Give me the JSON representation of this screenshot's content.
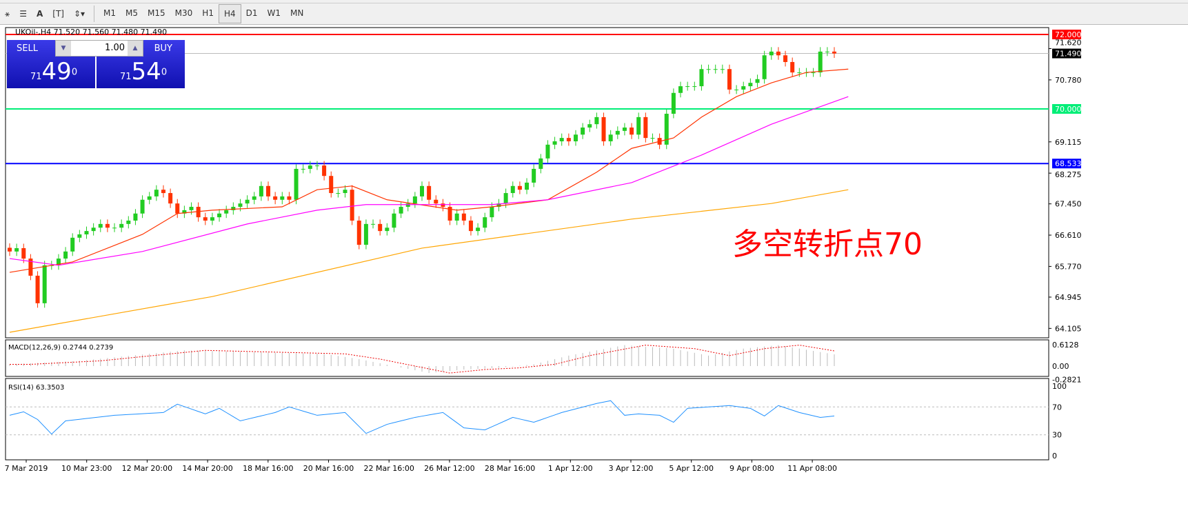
{
  "toolbar": {
    "tools": [
      "line-studies-icon",
      "fibonacci-icon",
      "text-icon",
      "text-label-icon",
      "arrows-icon"
    ],
    "timeframes": [
      "M1",
      "M5",
      "M15",
      "M30",
      "H1",
      "H4",
      "D1",
      "W1",
      "MN"
    ],
    "active": "H4"
  },
  "chart": {
    "header": "UKOil-,H4  71.520 71.560 71.480 71.490",
    "annotation": "多空转折点70",
    "colors": {
      "bull": "#22cc22",
      "bear": "#ff3300",
      "ma_fast": "#ff3300",
      "ma_mid": "#ff00ff",
      "ma_slow": "#ffa500"
    }
  },
  "trade_panel": {
    "sell_label": "SELL",
    "buy_label": "BUY",
    "volume": "1.00",
    "sell_big": "49",
    "sell_small": "71",
    "sell_sup": "0",
    "buy_big": "54",
    "buy_small": "71",
    "buy_sup": "0"
  },
  "levels": [
    {
      "price": 72.0,
      "label": "72.000",
      "color": "#ff0000"
    },
    {
      "price": 70.0,
      "label": "70.000",
      "color": "#00ee77"
    },
    {
      "price": 68.533,
      "label": "68.533",
      "color": "#0000ff"
    }
  ],
  "current_price": {
    "price": 71.49,
    "label": "71.490"
  },
  "chart_data": {
    "type": "candlestick",
    "ylim": [
      63.95,
      72.3
    ],
    "y_ticks": [
      "71.620",
      "70.780",
      "69.115",
      "68.275",
      "67.450",
      "66.610",
      "65.770",
      "64.945",
      "64.105"
    ],
    "x_ticks": [
      "7 Mar 2019",
      "10 Mar 23:00",
      "12 Mar 20:00",
      "14 Mar 20:00",
      "18 Mar 16:00",
      "20 Mar 16:00",
      "22 Mar 16:00",
      "26 Mar 12:00",
      "28 Mar 16:00",
      "1 Apr 12:00",
      "3 Apr 12:00",
      "5 Apr 12:00",
      "9 Apr 08:00",
      "11 Apr 08:00"
    ],
    "close": [
      66.17,
      66.26,
      65.98,
      65.52,
      64.78,
      65.8,
      65.8,
      65.98,
      66.17,
      66.54,
      66.63,
      66.72,
      66.81,
      66.91,
      66.81,
      66.81,
      66.91,
      67.0,
      67.19,
      67.56,
      67.65,
      67.83,
      67.74,
      67.46,
      67.19,
      67.28,
      67.37,
      67.09,
      67.0,
      67.09,
      67.19,
      67.28,
      67.37,
      67.46,
      67.56,
      67.65,
      67.93,
      67.65,
      67.56,
      67.65,
      67.56,
      68.39,
      68.39,
      68.48,
      68.48,
      68.2,
      67.74,
      67.74,
      67.83,
      67.0,
      66.35,
      66.91,
      66.91,
      66.72,
      66.81,
      67.19,
      67.37,
      67.46,
      67.65,
      67.93,
      67.56,
      67.46,
      67.37,
      67.0,
      67.19,
      67.0,
      66.72,
      66.81,
      67.09,
      67.37,
      67.46,
      67.74,
      67.93,
      67.83,
      68.02,
      68.39,
      68.67,
      69.04,
      69.13,
      69.22,
      69.13,
      69.31,
      69.5,
      69.59,
      69.78,
      69.13,
      69.31,
      69.41,
      69.5,
      69.31,
      69.78,
      69.22,
      69.22,
      69.04,
      69.87,
      70.43,
      70.61,
      70.61,
      70.61,
      71.07,
      71.07,
      71.07,
      71.07,
      70.52,
      70.52,
      70.61,
      70.7,
      70.8,
      71.44,
      71.54,
      71.44,
      71.26,
      70.98,
      70.98,
      70.98,
      70.98,
      71.54,
      71.54,
      71.49
    ],
    "ma_lines": [
      {
        "color": "#ff3300",
        "points": [
          [
            0,
            65.61
          ],
          [
            9,
            65.89
          ],
          [
            19,
            66.63
          ],
          [
            24,
            67.19
          ],
          [
            29,
            67.28
          ],
          [
            39,
            67.37
          ],
          [
            44,
            67.83
          ],
          [
            49,
            67.93
          ],
          [
            54,
            67.56
          ],
          [
            64,
            67.28
          ],
          [
            69,
            67.37
          ],
          [
            77,
            67.56
          ],
          [
            84,
            68.3
          ],
          [
            89,
            68.94
          ],
          [
            95,
            69.22
          ],
          [
            99,
            69.78
          ],
          [
            104,
            70.33
          ],
          [
            109,
            70.7
          ],
          [
            114,
            70.98
          ],
          [
            120,
            71.07
          ]
        ]
      },
      {
        "color": "#ff00ff",
        "points": [
          [
            0,
            65.98
          ],
          [
            7,
            65.8
          ],
          [
            19,
            66.17
          ],
          [
            34,
            66.91
          ],
          [
            44,
            67.28
          ],
          [
            51,
            67.43
          ],
          [
            69,
            67.43
          ],
          [
            77,
            67.56
          ],
          [
            89,
            68.02
          ],
          [
            99,
            68.76
          ],
          [
            109,
            69.59
          ],
          [
            120,
            70.33
          ]
        ]
      },
      {
        "color": "#ffa500",
        "points": [
          [
            0,
            64.0
          ],
          [
            29,
            64.96
          ],
          [
            59,
            66.26
          ],
          [
            89,
            67.04
          ],
          [
            109,
            67.46
          ],
          [
            120,
            67.83
          ]
        ]
      }
    ],
    "macd": {
      "label": "MACD(12,26,9) 0.2744 0.2739",
      "ticks": [
        "0.6128",
        "0.00",
        "-0.2821"
      ],
      "ylim": [
        -0.2821,
        0.6128
      ],
      "points": [
        [
          0,
          0.05
        ],
        [
          10,
          0.15
        ],
        [
          20,
          0.35
        ],
        [
          25,
          0.45
        ],
        [
          35,
          0.4
        ],
        [
          45,
          0.35
        ],
        [
          50,
          0.2
        ],
        [
          55,
          0
        ],
        [
          60,
          -0.2
        ],
        [
          65,
          -0.1
        ],
        [
          70,
          -0.05
        ],
        [
          75,
          0.05
        ],
        [
          80,
          0.3
        ],
        [
          88,
          0.6
        ],
        [
          95,
          0.5
        ],
        [
          100,
          0.3
        ],
        [
          105,
          0.5
        ],
        [
          110,
          0.6
        ],
        [
          120,
          0.27
        ]
      ]
    },
    "rsi": {
      "label": "RSI(14) 63.3503",
      "ticks": [
        "100",
        "70",
        "30",
        "0"
      ],
      "levels": [
        70,
        30
      ],
      "points": [
        [
          0,
          58
        ],
        [
          2,
          63
        ],
        [
          4,
          52
        ],
        [
          6,
          31
        ],
        [
          8,
          50
        ],
        [
          15,
          58
        ],
        [
          22,
          62
        ],
        [
          24,
          74
        ],
        [
          28,
          60
        ],
        [
          30,
          68
        ],
        [
          33,
          50
        ],
        [
          38,
          62
        ],
        [
          40,
          70
        ],
        [
          44,
          58
        ],
        [
          48,
          62
        ],
        [
          51,
          32
        ],
        [
          54,
          45
        ],
        [
          58,
          55
        ],
        [
          62,
          62
        ],
        [
          65,
          40
        ],
        [
          68,
          37
        ],
        [
          72,
          55
        ],
        [
          75,
          48
        ],
        [
          79,
          62
        ],
        [
          84,
          75
        ],
        [
          86,
          79
        ],
        [
          88,
          58
        ],
        [
          90,
          60
        ],
        [
          93,
          58
        ],
        [
          95,
          48
        ],
        [
          97,
          68
        ],
        [
          100,
          70
        ],
        [
          103,
          72
        ],
        [
          106,
          68
        ],
        [
          108,
          57
        ],
        [
          110,
          72
        ],
        [
          113,
          62
        ],
        [
          116,
          55
        ],
        [
          118,
          57
        ],
        [
          120,
          63
        ]
      ]
    }
  }
}
